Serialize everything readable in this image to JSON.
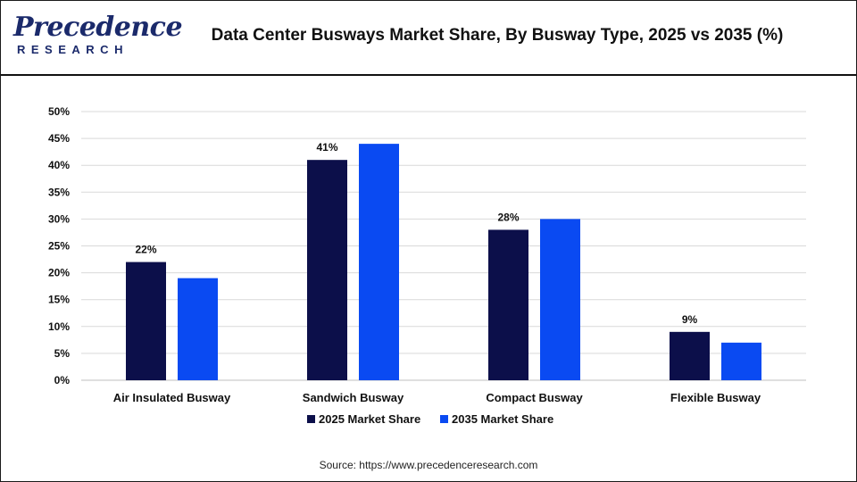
{
  "brand": {
    "logo_top": "Precedence",
    "logo_bottom": "RESEARCH"
  },
  "chart_data": {
    "type": "bar",
    "title": "Data Center Busways Market Share, By Busway Type, 2025 vs 2035 (%)",
    "categories": [
      "Air Insulated Busway",
      "Sandwich Busway",
      "Compact Busway",
      "Flexible Busway"
    ],
    "series": [
      {
        "name": "2025 Market Share",
        "values": [
          22,
          41,
          28,
          9
        ],
        "color": "#0c0f4a",
        "labels": [
          "22%",
          "41%",
          "28%",
          "9%"
        ]
      },
      {
        "name": "2035 Market Share",
        "values": [
          19,
          44,
          30,
          7
        ],
        "color": "#0a4af2"
      }
    ],
    "ylim": [
      0,
      50
    ],
    "yticks": [
      "0%",
      "5%",
      "10%",
      "15%",
      "20%",
      "25%",
      "30%",
      "35%",
      "40%",
      "45%",
      "50%"
    ],
    "xlabel": "",
    "ylabel": "",
    "grid": true,
    "legend": "bottom-center"
  },
  "footer": {
    "source": "Source: https://www.precedenceresearch.com"
  }
}
